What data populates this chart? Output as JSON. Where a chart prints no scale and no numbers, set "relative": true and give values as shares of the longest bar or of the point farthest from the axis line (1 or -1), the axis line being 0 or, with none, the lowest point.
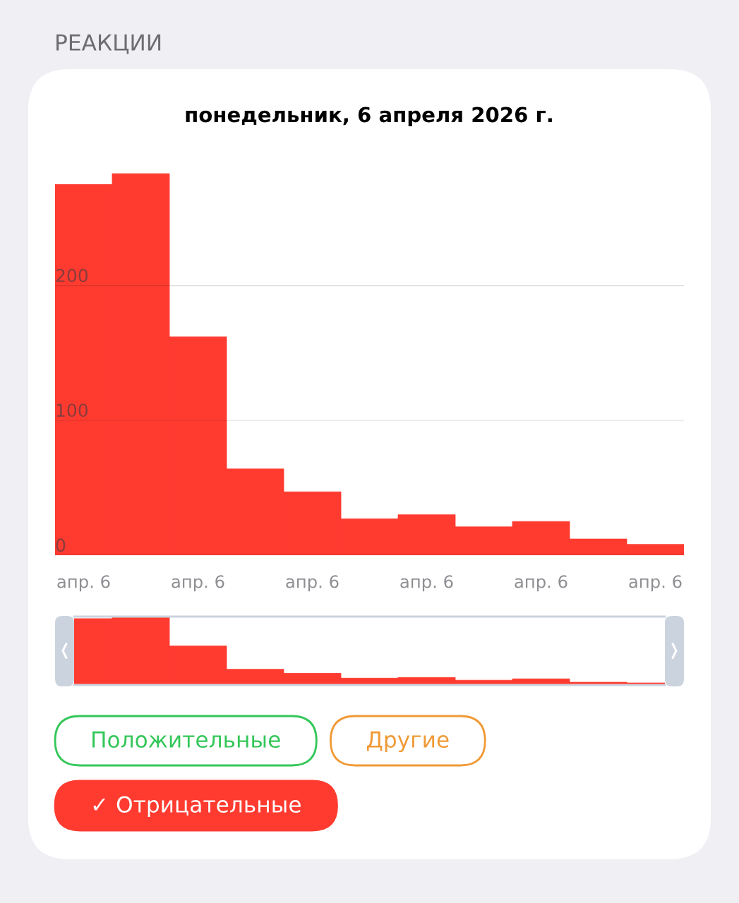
{
  "chart_data": [
    {
      "type": "bar",
      "title": "РЕАКЦИИ",
      "subtitle": "понедельник, 6 апреля 2026 г.",
      "categories": [
        "апр. 6",
        null,
        "апр. 6",
        null,
        "апр. 6",
        null,
        "апр. 6",
        null,
        "апр. 6",
        null,
        "апр. 6"
      ],
      "series": [
        {
          "name": "Положительные",
          "color": "#34c759",
          "values": [
            null,
            null,
            null,
            null,
            null,
            null,
            null,
            null,
            null,
            null,
            null
          ]
        },
        {
          "name": "Другие",
          "color": "#f09a37",
          "values": [
            null,
            null,
            null,
            null,
            null,
            null,
            null,
            null,
            null,
            null,
            null
          ]
        },
        {
          "name": "✓ Отрицательные",
          "color": "#ff3b30",
          "values": [
            275,
            283,
            162,
            64,
            47,
            27,
            30,
            21,
            25,
            12,
            8
          ]
        }
      ],
      "stacked": true,
      "ylim": [
        0,
        360
      ],
      "yticks": [
        0,
        100,
        200
      ],
      "grid": "y",
      "legend": "bottom"
    },
    {
      "type": "bar",
      "relative": true,
      "categories": [
        null,
        null,
        null,
        null,
        null,
        null,
        null,
        null,
        null,
        null,
        null
      ],
      "values": [
        0.97,
        1,
        0.57,
        0.23,
        0.17,
        0.1,
        0.11,
        0.07,
        0.09,
        0.04,
        0.03
      ],
      "color": "#ff3b30"
    }
  ]
}
